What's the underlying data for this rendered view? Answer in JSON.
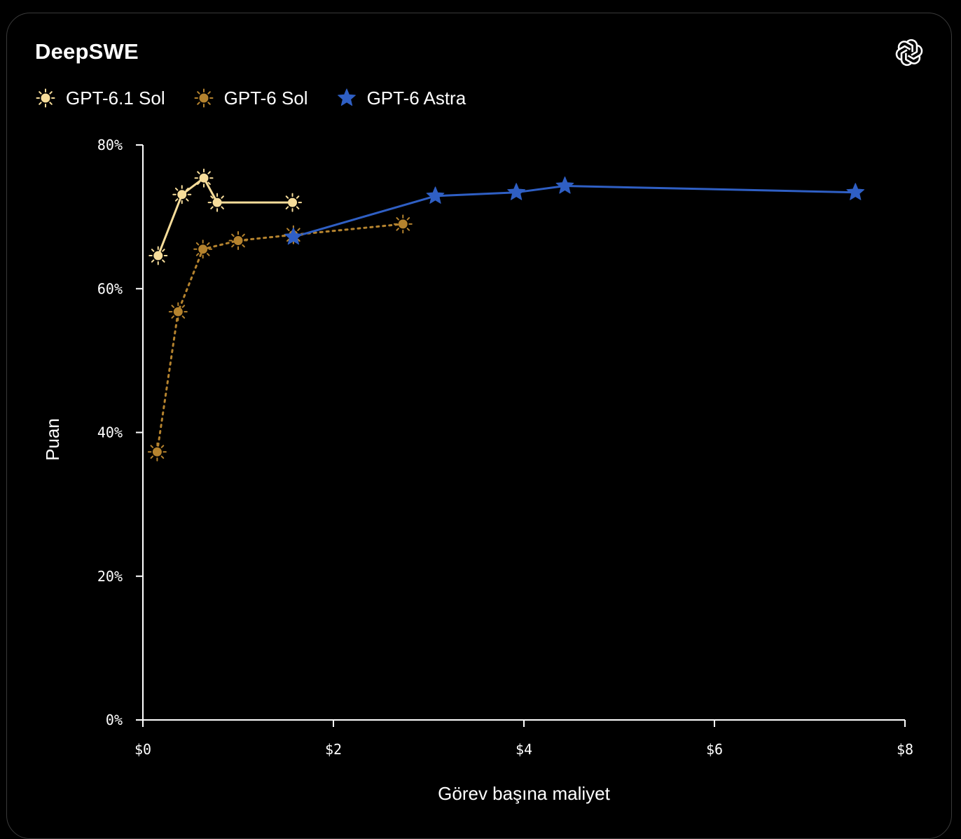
{
  "page": {
    "title": "DeepSWE",
    "logo_icon": "openai-logo-icon"
  },
  "legend": [
    {
      "label": "GPT-6.1 Sol",
      "marker": "sun",
      "color": "#f7dd9a"
    },
    {
      "label": "GPT-6 Sol",
      "marker": "sun",
      "color": "#b5832e"
    },
    {
      "label": "GPT-6 Astra",
      "marker": "star",
      "color": "#2f5fc4"
    }
  ],
  "chart_data": {
    "type": "line",
    "title": "DeepSWE",
    "xlabel": "Görev başına maliyet",
    "ylabel": "Puan",
    "xlim": [
      0,
      8
    ],
    "ylim": [
      0,
      80
    ],
    "x_ticks": [
      0,
      2,
      4,
      6,
      8
    ],
    "x_tick_labels": [
      "$0",
      "$2",
      "$4",
      "$6",
      "$8"
    ],
    "y_ticks": [
      0,
      20,
      40,
      60,
      80
    ],
    "y_tick_labels": [
      "0%",
      "20%",
      "40%",
      "60%",
      "80%"
    ],
    "grid": false,
    "legend_position": "top-left",
    "series": [
      {
        "name": "GPT-6.1 Sol",
        "color": "#f7dd9a",
        "marker": "sun",
        "line": "solid",
        "points": [
          [
            0.16,
            64.6
          ],
          [
            0.41,
            73.1
          ],
          [
            0.64,
            75.4
          ],
          [
            0.78,
            72.0
          ],
          [
            1.57,
            72.0
          ]
        ]
      },
      {
        "name": "GPT-6 Sol",
        "color": "#b5832e",
        "marker": "sun",
        "line": "dotted",
        "points": [
          [
            0.15,
            37.3
          ],
          [
            0.37,
            56.8
          ],
          [
            0.63,
            65.5
          ],
          [
            1.0,
            66.7
          ],
          [
            1.58,
            67.5
          ],
          [
            2.73,
            69.0
          ]
        ]
      },
      {
        "name": "GPT-6 Astra",
        "color": "#2f5fc4",
        "marker": "star",
        "line": "solid",
        "points": [
          [
            1.58,
            67.2
          ],
          [
            3.07,
            72.9
          ],
          [
            3.92,
            73.4
          ],
          [
            4.43,
            74.3
          ],
          [
            7.48,
            73.4
          ]
        ]
      }
    ]
  }
}
